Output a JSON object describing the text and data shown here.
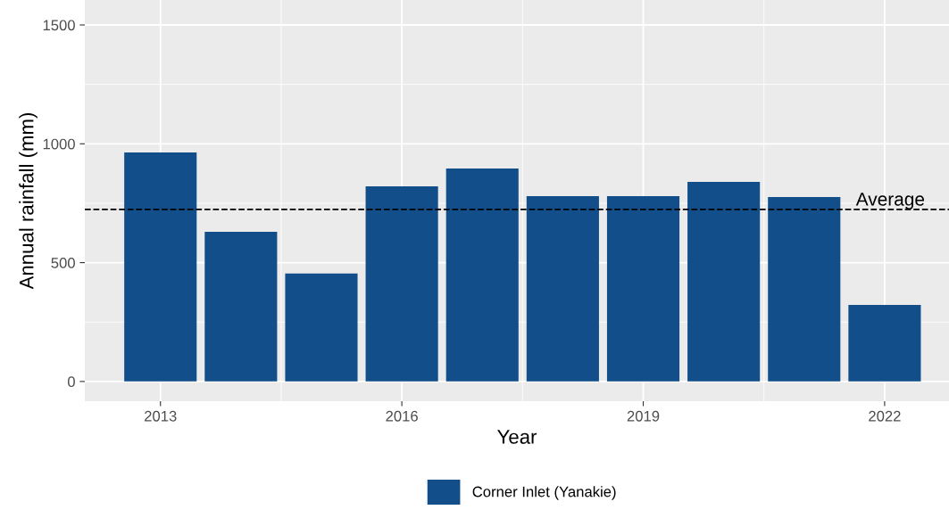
{
  "chart_data": {
    "type": "bar",
    "xlabel": "Year",
    "ylabel": "Annual rainfall (mm)",
    "x": [
      2013,
      2014,
      2015,
      2016,
      2017,
      2018,
      2019,
      2020,
      2021,
      2022
    ],
    "series": [
      {
        "name": "Corner Inlet (Yanakie)",
        "color": "#114e8a",
        "values": [
          964,
          630,
          454,
          821,
          896,
          780,
          780,
          840,
          776,
          322
        ]
      }
    ],
    "xlim": [
      2012.06,
      2022.8
    ],
    "xticks": [
      2013,
      2016,
      2019,
      2022
    ],
    "ylim": [
      -83,
      1605
    ],
    "yticks": [
      0,
      500,
      1000,
      1500
    ],
    "ref_lines": [
      {
        "axis": "y",
        "value": 724,
        "label": "Average",
        "line_style": "dashed",
        "color": "#000000"
      }
    ],
    "grid": true,
    "legend": "bottom"
  }
}
